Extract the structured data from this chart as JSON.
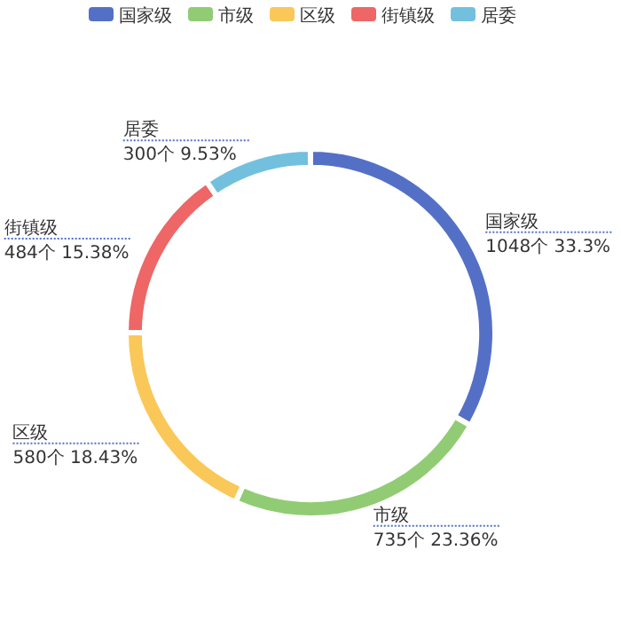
{
  "chart_data": {
    "type": "donut",
    "categories": [
      "国家级",
      "市级",
      "区级",
      "街镇级",
      "居委"
    ],
    "values": [
      1048,
      735,
      580,
      484,
      300
    ],
    "colors": [
      "#5470c6",
      "#91cc75",
      "#fac858",
      "#ee6666",
      "#73c0de"
    ],
    "value_labels": [
      "1048个 33.3%",
      "735个 23.36%",
      "580个 18.43%",
      "484个 15.38%",
      "300个 9.53%"
    ],
    "legend": "top"
  }
}
